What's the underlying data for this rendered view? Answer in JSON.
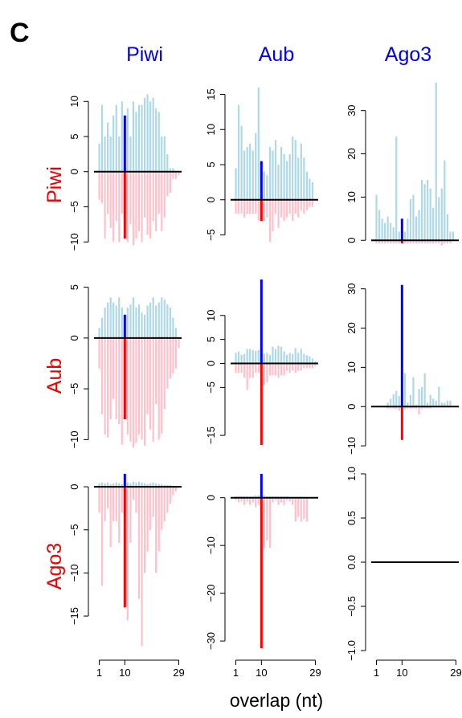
{
  "panel_label": "C",
  "column_headers": [
    "Piwi",
    "Aub",
    "Ago3"
  ],
  "row_headers": [
    "Piwi",
    "Aub",
    "Ago3"
  ],
  "xlabel": "overlap (nt)",
  "x_ticks": [
    "1",
    "10",
    "29"
  ],
  "colors": {
    "header": "#0000ee",
    "row_header": "#ee0000",
    "pos_bar": "#add8e6",
    "neg_bar": "#ffc0cb",
    "pos_highlight": "#0000ff",
    "neg_highlight": "#ff0000",
    "axis": "#000000"
  },
  "chart_data": [
    {
      "type": "bar",
      "row": "Piwi",
      "col": "Piwi",
      "ylim": [
        -11,
        13
      ],
      "yticks": [
        -10,
        -5,
        0,
        5,
        10
      ],
      "yticklabels": [
        "−10",
        "−5",
        "0",
        "5",
        "10"
      ],
      "x": [
        1,
        2,
        3,
        4,
        5,
        6,
        7,
        8,
        9,
        10,
        11,
        12,
        13,
        14,
        15,
        16,
        17,
        18,
        19,
        20,
        21,
        22,
        23,
        24,
        25,
        26,
        27,
        28,
        29
      ],
      "positive": [
        4,
        9.5,
        5,
        7,
        5,
        8,
        9.5,
        5,
        10,
        8,
        9,
        5,
        10,
        8.5,
        9.5,
        9.5,
        10.5,
        11,
        10,
        10.5,
        9,
        8.5,
        5,
        5,
        2.5,
        0.5,
        0.5,
        0,
        0
      ],
      "negative": [
        -4,
        -4.5,
        -9.5,
        -6,
        -8,
        -10,
        -7,
        -10,
        -6,
        -9.5,
        -10,
        -7.5,
        -10.5,
        -9.5,
        -8.5,
        -10,
        -6.5,
        -9,
        -9.5,
        -7,
        -8.5,
        -6,
        -8.5,
        -6.5,
        -3.5,
        -3,
        -1,
        -1,
        -0.5
      ]
    },
    {
      "type": "bar",
      "row": "Piwi",
      "col": "Aub",
      "ylim": [
        -7,
        17
      ],
      "yticks": [
        -5,
        0,
        5,
        10,
        15
      ],
      "yticklabels": [
        "−5",
        "0",
        "5",
        "10",
        "15"
      ],
      "x": [
        1,
        2,
        3,
        4,
        5,
        6,
        7,
        8,
        9,
        10,
        11,
        12,
        13,
        14,
        15,
        16,
        17,
        18,
        19,
        20,
        21,
        22,
        23,
        24,
        25,
        26,
        27,
        28,
        29
      ],
      "positive": [
        4.5,
        13.5,
        10.5,
        7,
        7.5,
        8,
        7,
        9.5,
        16,
        5.5,
        4,
        3.5,
        7.5,
        7,
        8.5,
        5,
        7.5,
        6.5,
        5.5,
        6.5,
        9,
        8.5,
        6,
        8,
        6,
        4,
        3,
        2.5,
        0
      ],
      "negative": [
        -2,
        -2,
        -2,
        -2.5,
        -2,
        -2,
        -2,
        -2,
        -3,
        -3,
        -3,
        -2.5,
        -6,
        -4.5,
        -2,
        -4,
        -2.5,
        -3,
        -2.5,
        -2,
        -3,
        -2,
        -2.5,
        -1.5,
        -2,
        -1.5,
        -1,
        -1,
        0
      ]
    },
    {
      "type": "bar",
      "row": "Piwi",
      "col": "Ago3",
      "ylim": [
        -2,
        37
      ],
      "yticks": [
        0,
        10,
        20,
        30
      ],
      "yticklabels": [
        "0",
        "10",
        "20",
        "30"
      ],
      "x": [
        1,
        2,
        3,
        4,
        5,
        6,
        7,
        8,
        9,
        10,
        11,
        12,
        13,
        14,
        15,
        16,
        17,
        18,
        19,
        20,
        21,
        22,
        23,
        24,
        25,
        26,
        27,
        28,
        29
      ],
      "positive": [
        10.5,
        7,
        5,
        4,
        5.5,
        4,
        3,
        24,
        2,
        5,
        2,
        5,
        9.5,
        10.5,
        5.5,
        7,
        14,
        13,
        14,
        12,
        7.5,
        36.5,
        10,
        12,
        18.5,
        6,
        2,
        2,
        0
      ],
      "negative": [
        -0.7,
        -0.7,
        -0.7,
        -0.7,
        -0.7,
        -0.7,
        -0.7,
        -0.7,
        -0.7,
        -0.7,
        -0.7,
        -0.7,
        -0.7,
        -0.7,
        -0.7,
        -0.7,
        -0.7,
        -0.7,
        -0.7,
        -0.7,
        -0.7,
        -0.7,
        -0.7,
        -1.2,
        -0.7,
        -0.7,
        -0.7,
        0,
        0
      ]
    },
    {
      "type": "bar",
      "row": "Aub",
      "col": "Piwi",
      "ylim": [
        -11,
        6
      ],
      "yticks": [
        -10,
        -5,
        0,
        5
      ],
      "yticklabels": [
        "−10",
        "−5",
        "0",
        "5"
      ],
      "x": [
        1,
        2,
        3,
        4,
        5,
        6,
        7,
        8,
        9,
        10,
        11,
        12,
        13,
        14,
        15,
        16,
        17,
        18,
        19,
        20,
        21,
        22,
        23,
        24,
        25,
        26,
        27,
        28,
        29
      ],
      "positive": [
        1,
        2,
        3,
        3.5,
        4,
        3.5,
        3.2,
        4,
        3,
        2.3,
        3,
        3.3,
        4,
        3,
        3.3,
        2.5,
        2.3,
        3.2,
        3.5,
        4,
        3.2,
        3.5,
        4,
        3.8,
        3.3,
        3,
        2,
        1,
        0
      ],
      "negative": [
        -3,
        -7.5,
        -9.5,
        -9.8,
        -8,
        -6,
        -8,
        -8.5,
        -10.5,
        -8,
        -9.5,
        -10.2,
        -10.8,
        -10.3,
        -9.5,
        -10,
        -10.6,
        -7.5,
        -9,
        -10.2,
        -6.5,
        -10,
        -9.4,
        -7,
        -5,
        -4,
        -3.5,
        -3,
        -1
      ]
    },
    {
      "type": "bar",
      "row": "Aub",
      "col": "Aub",
      "ylim": [
        -18,
        18
      ],
      "yticks": [
        -15,
        -5,
        0,
        5,
        10
      ],
      "yticklabels": [
        "−15",
        "−5",
        "0",
        "5",
        "10"
      ],
      "x": [
        1,
        2,
        3,
        4,
        5,
        6,
        7,
        8,
        9,
        10,
        11,
        12,
        13,
        14,
        15,
        16,
        17,
        18,
        19,
        20,
        21,
        22,
        23,
        24,
        25,
        26,
        27,
        28,
        29
      ],
      "positive": [
        2.2,
        2.5,
        1.8,
        2,
        3,
        3,
        2.8,
        2.6,
        2.8,
        17.5,
        2,
        2.2,
        1.8,
        3.5,
        3,
        3.7,
        3.5,
        2.5,
        1.8,
        2.2,
        2,
        3.2,
        2.2,
        3,
        2,
        1.7,
        1.5,
        1,
        0.5
      ],
      "negative": [
        -2,
        -2,
        -2,
        -3,
        -5.5,
        -3,
        -3,
        -2,
        -2,
        -17,
        -4.5,
        -4,
        -2.5,
        -2.5,
        -2.5,
        -3,
        -2.5,
        -2.5,
        -1.5,
        -2,
        -1.5,
        -2,
        -1.5,
        -1.5,
        -1,
        -1,
        -1,
        -1,
        -0.5
      ]
    },
    {
      "type": "bar",
      "row": "Aub",
      "col": "Ago3",
      "ylim": [
        -11,
        33
      ],
      "yticks": [
        -10,
        0,
        10,
        20,
        30
      ],
      "yticklabels": [
        "−10",
        "0",
        "10",
        "20",
        "30"
      ],
      "x": [
        1,
        2,
        3,
        4,
        5,
        6,
        7,
        8,
        9,
        10,
        11,
        12,
        13,
        14,
        15,
        16,
        17,
        18,
        19,
        20,
        21,
        22,
        23,
        24,
        25,
        26,
        27,
        28,
        29
      ],
      "positive": [
        0,
        0,
        0,
        0,
        1,
        2,
        3.2,
        4,
        2.7,
        31,
        8.5,
        1,
        3,
        7.5,
        0.5,
        4.5,
        5,
        8.5,
        1,
        3,
        2,
        1.5,
        5,
        1,
        1,
        1.5,
        1.5,
        0,
        0
      ],
      "negative": [
        0,
        0,
        0,
        0,
        -0.5,
        -0.5,
        -0.5,
        -0.5,
        -1,
        -8.5,
        -0.7,
        -0.5,
        -0.5,
        -0.5,
        -0.5,
        -2,
        -0.5,
        -0.5,
        -0.5,
        -0.5,
        0,
        0,
        0,
        0,
        0,
        0,
        0,
        0,
        0
      ]
    },
    {
      "type": "bar",
      "row": "Ago3",
      "col": "Piwi",
      "ylim": [
        -19,
        1.5
      ],
      "yticks": [
        -15,
        -10,
        -5,
        0
      ],
      "yticklabels": [
        "−15",
        "−10",
        "−5",
        "0"
      ],
      "x": [
        1,
        2,
        3,
        4,
        5,
        6,
        7,
        8,
        9,
        10,
        11,
        12,
        13,
        14,
        15,
        16,
        17,
        18,
        19,
        20,
        21,
        22,
        23,
        24,
        25,
        26,
        27,
        28,
        29
      ],
      "positive": [
        0.4,
        0.5,
        0.4,
        0.5,
        0.3,
        0.4,
        0.5,
        0.4,
        0.3,
        1.5,
        0.5,
        0.4,
        0.6,
        0.5,
        0.6,
        0.5,
        0.4,
        0.3,
        0.4,
        0.5,
        0.4,
        0.3,
        0.3,
        0.2,
        0.2,
        0.2,
        0.1,
        0,
        0
      ],
      "negative": [
        -3,
        -11.5,
        -4,
        -2.5,
        -7,
        -4,
        -4,
        -6.5,
        -3,
        -14,
        -15.5,
        -6.5,
        -1.5,
        -3,
        -13,
        -18.5,
        -10,
        -7.5,
        -5,
        -3.5,
        -10,
        -7.5,
        -5,
        -4,
        -3,
        -2,
        -1,
        -0.5,
        0
      ]
    },
    {
      "type": "bar",
      "row": "Ago3",
      "col": "Aub",
      "ylim": [
        -32,
        5
      ],
      "yticks": [
        -30,
        -20,
        -10,
        0
      ],
      "yticklabels": [
        "−30",
        "−20",
        "−10",
        "0"
      ],
      "x": [
        1,
        2,
        3,
        4,
        5,
        6,
        7,
        8,
        9,
        10,
        11,
        12,
        13,
        14,
        15,
        16,
        17,
        18,
        19,
        20,
        21,
        22,
        23,
        24,
        25,
        26,
        27,
        28,
        29
      ],
      "positive": [
        0.3,
        0.3,
        0.3,
        0.3,
        0.3,
        0.3,
        0.3,
        0.5,
        0.5,
        5,
        0.5,
        0.3,
        0.3,
        0.3,
        0.3,
        0.3,
        0.3,
        0.3,
        0.3,
        0.2,
        0.2,
        0.2,
        0.2,
        0.2,
        0.2,
        0,
        0,
        0,
        0
      ],
      "negative": [
        -0.5,
        -1,
        -0.8,
        -1.5,
        -0.8,
        -1.5,
        -1,
        -2,
        -1.5,
        -31.5,
        -10.5,
        -9,
        -10.5,
        -1,
        -0.5,
        -1.5,
        -1,
        -1.5,
        -0.5,
        -0.8,
        -1.5,
        -5,
        -4,
        -5,
        -4.5,
        -5,
        0,
        0,
        0
      ]
    },
    {
      "type": "bar",
      "row": "Ago3",
      "col": "Ago3",
      "ylim": [
        -1,
        1
      ],
      "yticks": [
        -1,
        -0.5,
        0,
        0.5,
        1
      ],
      "yticklabels": [
        "−1.0",
        "−0.5",
        "0.0",
        "0.5",
        "1.0"
      ],
      "x": [
        1,
        2,
        3,
        4,
        5,
        6,
        7,
        8,
        9,
        10,
        11,
        12,
        13,
        14,
        15,
        16,
        17,
        18,
        19,
        20,
        21,
        22,
        23,
        24,
        25,
        26,
        27,
        28,
        29
      ],
      "positive": [
        0,
        0,
        0,
        0,
        0,
        0,
        0,
        0,
        0,
        0,
        0,
        0,
        0,
        0,
        0,
        0,
        0,
        0,
        0,
        0,
        0,
        0,
        0,
        0,
        0,
        0,
        0,
        0,
        0
      ],
      "negative": [
        0,
        0,
        0,
        0,
        0,
        0,
        0,
        0,
        0,
        0,
        0,
        0,
        0,
        0,
        0,
        0,
        0,
        0,
        0,
        0,
        0,
        0,
        0,
        0,
        0,
        0,
        0,
        0,
        0
      ]
    }
  ]
}
